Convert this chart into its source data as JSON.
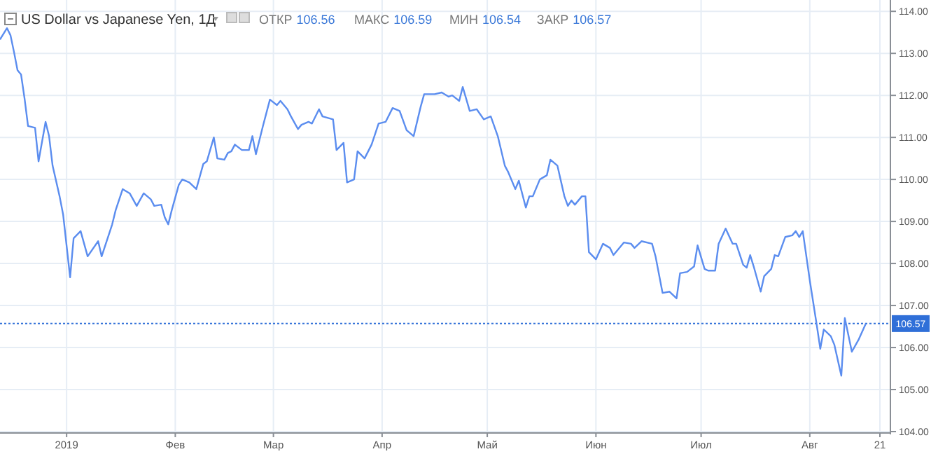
{
  "chart_data": {
    "type": "line",
    "title": "US Dollar vs Japanese Yen, 1Д",
    "annotations": [
      "ОТКР 106.56",
      "МАКС 106.59",
      "МИН 106.54",
      "ЗАКР 106.57"
    ],
    "x": [
      "2018-12-13",
      "2018-12-15",
      "2018-12-16",
      "2018-12-17",
      "2018-12-18",
      "2018-12-19",
      "2018-12-20",
      "2018-12-21",
      "2018-12-23",
      "2018-12-24",
      "2018-12-26",
      "2018-12-27",
      "2018-12-28",
      "2018-12-30",
      "2018-12-31",
      "2019-01-02",
      "2019-01-03",
      "2019-01-05",
      "2019-01-07",
      "2019-01-10",
      "2019-01-11",
      "2019-01-14",
      "2019-01-15",
      "2019-01-17",
      "2019-01-19",
      "2019-01-21",
      "2019-01-23",
      "2019-01-25",
      "2019-01-26",
      "2019-01-28",
      "2019-01-29",
      "2019-01-30",
      "2019-01-31",
      "2019-02-02",
      "2019-02-03",
      "2019-02-05",
      "2019-02-07",
      "2019-02-09",
      "2019-02-10",
      "2019-02-12",
      "2019-02-13",
      "2019-02-15",
      "2019-02-16",
      "2019-02-17",
      "2019-02-18",
      "2019-02-20",
      "2019-02-22",
      "2019-02-23",
      "2019-02-24",
      "2019-02-26",
      "2019-02-28",
      "2019-03-02",
      "2019-03-03",
      "2019-03-05",
      "2019-03-06",
      "2019-03-08",
      "2019-03-09",
      "2019-03-11",
      "2019-03-12",
      "2019-03-14",
      "2019-03-15",
      "2019-03-18",
      "2019-03-19",
      "2019-03-21",
      "2019-03-22",
      "2019-03-24",
      "2019-03-25",
      "2019-03-27",
      "2019-03-29",
      "2019-03-31",
      "2019-04-02",
      "2019-04-04",
      "2019-04-06",
      "2019-04-08",
      "2019-04-10",
      "2019-04-12",
      "2019-04-13",
      "2019-04-15",
      "2019-04-16",
      "2019-04-18",
      "2019-04-20",
      "2019-04-21",
      "2019-04-23",
      "2019-04-24",
      "2019-04-26",
      "2019-04-28",
      "2019-04-30",
      "2019-05-02",
      "2019-05-04",
      "2019-05-06",
      "2019-05-07",
      "2019-05-09",
      "2019-05-10",
      "2019-05-12",
      "2019-05-13",
      "2019-05-14",
      "2019-05-16",
      "2019-05-18",
      "2019-05-19",
      "2019-05-21",
      "2019-05-23",
      "2019-05-24",
      "2019-05-25",
      "2019-05-26",
      "2019-05-28",
      "2019-05-29",
      "2019-05-30",
      "2019-06-01",
      "2019-06-03",
      "2019-06-05",
      "2019-06-06",
      "2019-06-09",
      "2019-06-11",
      "2019-06-12",
      "2019-06-14",
      "2019-06-17",
      "2019-06-18",
      "2019-06-20",
      "2019-06-22",
      "2019-06-24",
      "2019-06-25",
      "2019-06-27",
      "2019-06-29",
      "2019-06-30",
      "2019-07-02",
      "2019-07-03",
      "2019-07-05",
      "2019-07-06",
      "2019-07-08",
      "2019-07-10",
      "2019-07-11",
      "2019-07-13",
      "2019-07-14",
      "2019-07-15",
      "2019-07-16",
      "2019-07-18",
      "2019-07-19",
      "2019-07-21",
      "2019-07-22",
      "2019-07-23",
      "2019-07-25",
      "2019-07-27",
      "2019-07-28",
      "2019-07-29",
      "2019-07-30",
      "2019-08-01",
      "2019-08-03",
      "2019-08-04",
      "2019-08-05",
      "2019-08-07",
      "2019-08-08",
      "2019-08-10",
      "2019-08-11",
      "2019-08-13",
      "2019-08-15",
      "2019-08-17"
    ],
    "series": [
      {
        "color": "#5b8def",
        "values": [
          113.33,
          113.6,
          113.43,
          113.03,
          112.6,
          112.5,
          111.93,
          111.27,
          111.23,
          110.43,
          111.37,
          111.03,
          110.33,
          109.6,
          109.17,
          107.67,
          108.6,
          108.77,
          108.17,
          108.53,
          108.17,
          108.93,
          109.27,
          109.77,
          109.67,
          109.37,
          109.67,
          109.53,
          109.37,
          109.4,
          109.1,
          108.93,
          109.27,
          109.87,
          110.0,
          109.93,
          109.77,
          110.37,
          110.43,
          111.0,
          110.5,
          110.47,
          110.63,
          110.67,
          110.83,
          110.7,
          110.7,
          111.03,
          110.6,
          111.27,
          111.9,
          111.77,
          111.87,
          111.67,
          111.5,
          111.2,
          111.3,
          111.37,
          111.33,
          111.67,
          111.5,
          111.43,
          110.7,
          110.87,
          109.93,
          110.0,
          110.67,
          110.5,
          110.83,
          111.33,
          111.37,
          111.7,
          111.63,
          111.17,
          111.03,
          111.73,
          112.03,
          112.03,
          112.03,
          112.07,
          111.97,
          112.0,
          111.87,
          112.2,
          111.63,
          111.67,
          111.43,
          111.5,
          111.03,
          110.33,
          110.17,
          109.77,
          109.97,
          109.33,
          109.6,
          109.6,
          110.0,
          110.1,
          110.47,
          110.33,
          109.6,
          109.37,
          109.5,
          109.4,
          109.6,
          109.6,
          108.27,
          108.1,
          108.47,
          108.37,
          108.2,
          108.5,
          108.47,
          108.37,
          108.53,
          108.47,
          108.17,
          107.3,
          107.33,
          107.17,
          107.77,
          107.8,
          107.93,
          108.43,
          107.87,
          107.83,
          107.83,
          108.47,
          108.83,
          108.47,
          108.47,
          107.97,
          107.9,
          108.2,
          107.93,
          107.33,
          107.7,
          107.87,
          108.2,
          108.17,
          108.63,
          108.67,
          108.77,
          108.63,
          108.77,
          107.6,
          106.53,
          105.97,
          106.43,
          106.27,
          106.07,
          105.33,
          106.7,
          105.9,
          106.2,
          106.57
        ]
      }
    ],
    "xlim": [
      "2018-12-13",
      "2019-08-24"
    ],
    "xticks": [
      {
        "value": "2019-01-01",
        "label": "2019"
      },
      {
        "value": "2019-02-01",
        "label": "Фев"
      },
      {
        "value": "2019-03-01",
        "label": "Мар"
      },
      {
        "value": "2019-04-01",
        "label": "Апр"
      },
      {
        "value": "2019-05-01",
        "label": "Май"
      },
      {
        "value": "2019-06-01",
        "label": "Июн"
      },
      {
        "value": "2019-07-01",
        "label": "Июл"
      },
      {
        "value": "2019-08-01",
        "label": "Авг"
      },
      {
        "value": "2019-08-21",
        "label": "21"
      }
    ],
    "ylim": [
      104,
      114.27
    ],
    "yticks": [
      {
        "value": 104,
        "label": "104.00"
      },
      {
        "value": 105,
        "label": "105.00"
      },
      {
        "value": 106,
        "label": "106.00"
      },
      {
        "value": 107,
        "label": "107.00"
      },
      {
        "value": 108,
        "label": "108.00"
      },
      {
        "value": 109,
        "label": "109.00"
      },
      {
        "value": 110,
        "label": "110.00"
      },
      {
        "value": 111,
        "label": "111.00"
      },
      {
        "value": 112,
        "label": "112.00"
      },
      {
        "value": 113,
        "label": "113.00"
      },
      {
        "value": 114,
        "label": "114.00"
      }
    ],
    "ref_lines": [
      {
        "axis": "y",
        "value": 106.57,
        "label": "106.57",
        "color": "#2f6fd8",
        "line_style": "dotted"
      }
    ],
    "grid": true,
    "marker": "none",
    "line_style": "solid"
  }
}
